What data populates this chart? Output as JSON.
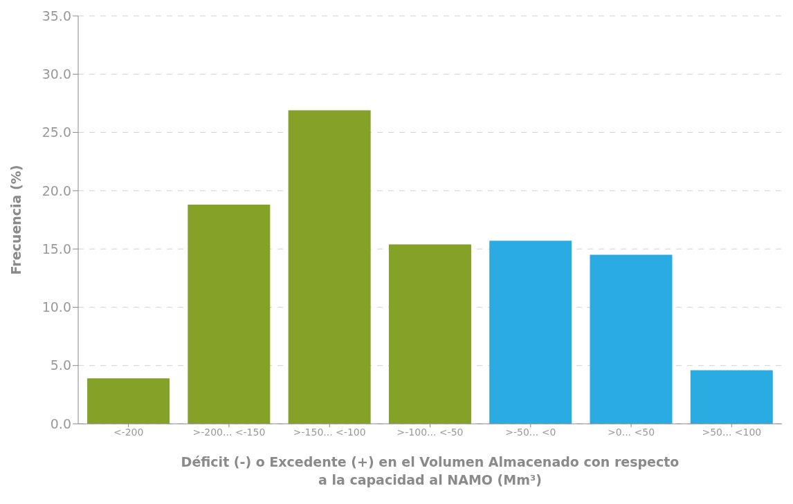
{
  "chart_data": {
    "type": "bar",
    "xlabel": "Déficit (-) o Excedente (+) en el Volumen Almacenado con respecto a la capacidad al NAMO (Mm³)",
    "ylabel": "Frecuencia (%)",
    "categories": [
      "<-200",
      ">-200...  <-150",
      ">-150...  <-100",
      ">-100...  <-50",
      ">-50...  <0",
      ">0... <50",
      ">50...  <100"
    ],
    "values": [
      3.9,
      18.8,
      26.9,
      15.4,
      15.7,
      14.5,
      4.6
    ],
    "colors": [
      "#84a128",
      "#84a128",
      "#84a128",
      "#84a128",
      "#2aabe2",
      "#2aabe2",
      "#2aabe2"
    ],
    "ylim": [
      0,
      35
    ],
    "yticks": [
      {
        "value": 0,
        "label": "0.0"
      },
      {
        "value": 5,
        "label": "5.0"
      },
      {
        "value": 10,
        "label": "10.0"
      },
      {
        "value": 15,
        "label": "15.0"
      },
      {
        "value": 20,
        "label": "20.0"
      },
      {
        "value": 25,
        "label": "25.0"
      },
      {
        "value": 30,
        "label": "30.0"
      },
      {
        "value": 35,
        "label": "35.0"
      }
    ],
    "grid": "y"
  }
}
